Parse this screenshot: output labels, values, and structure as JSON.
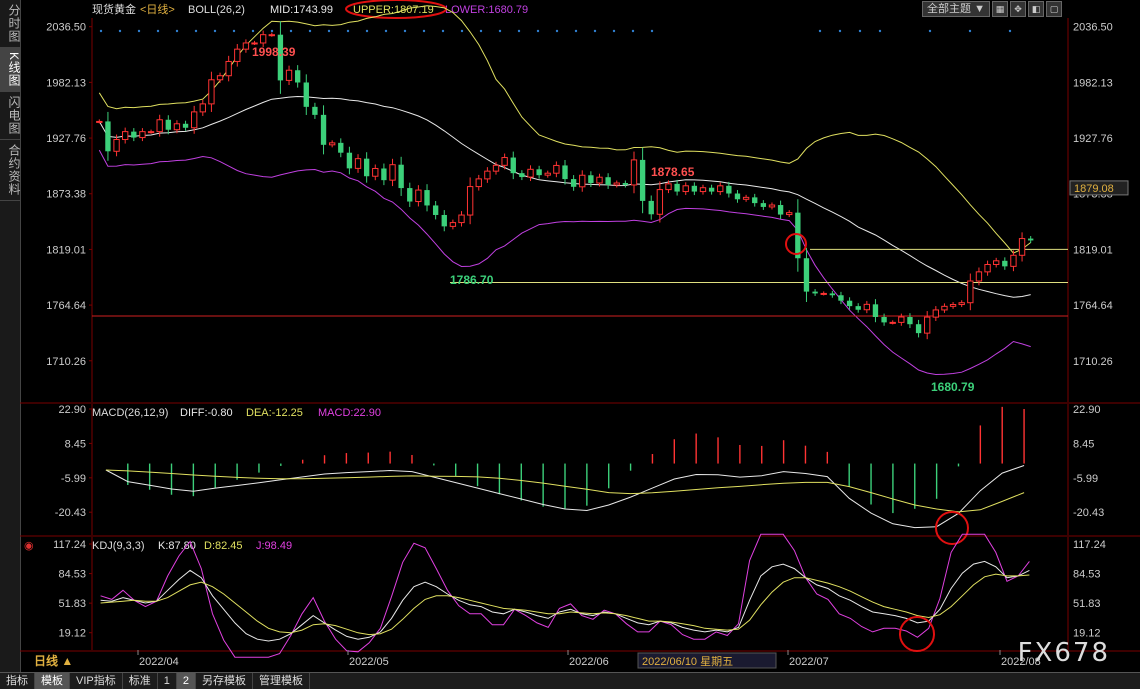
{
  "sidebar": {
    "tabs": [
      "分时图",
      "K线图",
      "闪电图",
      "合约资料"
    ],
    "active_index": 1
  },
  "header": {
    "symbol": "现货黄金",
    "period": "<日线>",
    "boll_label": "BOLL(26,2)",
    "mid": "MID:1743.99",
    "upper": "UPPER:1807.19",
    "lower": "LOWER:1680.79",
    "theme_button": "全部主题 ▼"
  },
  "macd_header": {
    "name": "MACD(26,12,9)",
    "diff": "DIFF:-0.80",
    "dea": "DEA:-12.25",
    "macd": "MACD:22.90"
  },
  "kdj_header": {
    "name": "KDJ(9,3,3)",
    "k": "K:87.80",
    "d": "D:82.45",
    "j": "J:98.49"
  },
  "xaxis": {
    "period_label": "日线 ▲",
    "dates": [
      "2022/04",
      "2022/05",
      "2022/06",
      "2022/07",
      "2022/08"
    ],
    "cursor_date": "2022/06/10 星期五"
  },
  "toolbar": [
    "指标",
    "模板",
    "VIP指标",
    "标准",
    "1",
    "2",
    "另存模板",
    "管理模板"
  ],
  "toolbar_active": [
    1,
    5
  ],
  "watermark": "FX678",
  "colors": {
    "up": "#ff3333",
    "down": "#3cd07a",
    "mid": "#e8e8e8",
    "upper": "#e0e060",
    "lower": "#c040e0",
    "axis": "#7a0000"
  },
  "chart_data": [
    {
      "type": "candlestick",
      "title": "现货黄金",
      "ylim": [
        1670,
        2045
      ],
      "yticks": [
        "2036.50",
        "1982.13",
        "1927.76",
        "1873.38",
        "1819.01",
        "1764.64",
        "1710.26"
      ],
      "current_price": "1879.08",
      "annotations": {
        "high1": "1998.39",
        "high2": "1878.65",
        "low1": "1786.70",
        "low2": "1680.79"
      },
      "hlines": [
        1819.01,
        1786.7,
        1754
      ],
      "start_price": 1944,
      "returns": [
        0.0,
        -0.015,
        0.006,
        0.004,
        -0.003,
        0.003,
        0.0,
        0.006,
        -0.005,
        0.003,
        -0.002,
        0.008,
        0.004,
        0.012,
        0.002,
        0.007,
        0.006,
        0.003,
        0.0,
        0.004,
        0.0,
        -0.022,
        0.005,
        -0.006,
        -0.012,
        -0.004,
        -0.015,
        0.001,
        -0.005,
        -0.008,
        0.005,
        -0.009,
        0.004,
        -0.006,
        0.008,
        -0.012,
        -0.007,
        0.006,
        -0.008,
        -0.005,
        -0.006,
        0.002,
        0.004,
        0.015,
        0.004,
        0.004,
        0.003,
        0.004,
        -0.008,
        -0.002,
        0.004,
        -0.003,
        0.001,
        0.004,
        -0.007,
        -0.004,
        0.006,
        -0.004,
        0.003,
        -0.004,
        0.001,
        -0.001,
        0.013,
        -0.021,
        -0.007,
        0.013,
        0.003,
        -0.004,
        0.003,
        -0.003,
        0.002,
        -0.002,
        0.003,
        -0.004,
        -0.003,
        0.001,
        -0.003,
        -0.002,
        0.001,
        -0.005,
        0.001,
        -0.024,
        -0.018,
        -0.001,
        0.0,
        -0.001,
        -0.003,
        -0.003,
        -0.002,
        0.003,
        -0.007,
        -0.003,
        0.0,
        0.003,
        -0.004,
        -0.005,
        0.009,
        0.004,
        0.002,
        0.001,
        0.001,
        0.012,
        0.005,
        0.004,
        0.002,
        -0.003,
        0.006,
        0.009,
        -0.001
      ]
    },
    {
      "type": "bar",
      "title": "MACD(26,12,9)",
      "ylim": [
        -30,
        25
      ],
      "yticks": [
        "22.90",
        "8.45",
        "-5.99",
        "-20.43"
      ],
      "diff": [
        -2.7,
        -7.6,
        -9.1,
        -10.7,
        -11.6,
        -10.3,
        -9.2,
        -8.1,
        -6.8,
        -5.6,
        -4.4,
        -3.8,
        -3.4,
        -2.9,
        -3.4,
        -5.7,
        -8.0,
        -10.3,
        -12.6,
        -14.9,
        -17.2,
        -19.1,
        -19.7,
        -17.4,
        -14.1,
        -10.3,
        -6.5,
        -4.6,
        -4.7,
        -5.7,
        -5.1,
        -3.4,
        -4.2,
        -5.5,
        -14.6,
        -20.8,
        -25.3,
        -26.9,
        -26.5,
        -20.9,
        -11.4,
        -4.0,
        -0.8
      ],
      "dea": [
        -2.7,
        -3.1,
        -3.6,
        -4.2,
        -4.8,
        -5.3,
        -5.8,
        -6.2,
        -6.4,
        -6.4,
        -6.2,
        -6.0,
        -5.7,
        -5.4,
        -5.2,
        -5.3,
        -5.4,
        -5.6,
        -6.2,
        -7.1,
        -8.2,
        -9.5,
        -10.8,
        -12.2,
        -12.6,
        -12.3,
        -11.6,
        -10.9,
        -10.2,
        -9.6,
        -8.9,
        -8.3,
        -7.9,
        -7.9,
        -9.7,
        -12.2,
        -14.9,
        -17.4,
        -19.1,
        -20.3,
        -19.4,
        -15.9,
        -12.2
      ],
      "macd": [
        0.0,
        -9.0,
        -11.0,
        -13.1,
        -13.7,
        -10.3,
        -6.8,
        -3.8,
        -1.0,
        1.6,
        3.5,
        4.4,
        4.6,
        5.0,
        3.6,
        -0.8,
        -5.2,
        -9.5,
        -12.9,
        -15.5,
        -18.1,
        -19.2,
        -17.7,
        -10.4,
        -3.0,
        4.0,
        10.2,
        12.6,
        11.0,
        7.8,
        7.4,
        9.8,
        7.5,
        4.9,
        -9.8,
        -17.2,
        -20.8,
        -19.0,
        -14.8,
        -1.2,
        16.0,
        23.8,
        22.9
      ]
    },
    {
      "type": "line",
      "title": "KDJ(9,3,3)",
      "ylim": [
        0,
        125
      ],
      "yticks": [
        "117.24",
        "84.53",
        "51.83",
        "19.12"
      ],
      "k": [
        55,
        54,
        58,
        55,
        52,
        54,
        66,
        78,
        88,
        80,
        60,
        45,
        30,
        18,
        12,
        10,
        12,
        18,
        28,
        38,
        30,
        22,
        15,
        12,
        14,
        20,
        35,
        55,
        70,
        75,
        70,
        62,
        55,
        50,
        48,
        42,
        40,
        45,
        42,
        38,
        35,
        42,
        45,
        40,
        38,
        42,
        40,
        35,
        30,
        28,
        32,
        30,
        25,
        22,
        20,
        22,
        20,
        25,
        55,
        82,
        92,
        95,
        90,
        80,
        72,
        68,
        60,
        55,
        48,
        42,
        40,
        38,
        35,
        30,
        32,
        45,
        68,
        85,
        95,
        98,
        92,
        80,
        82,
        88
      ],
      "d": [
        52,
        53,
        54,
        55,
        54,
        54,
        58,
        65,
        72,
        75,
        70,
        62,
        52,
        42,
        32,
        24,
        20,
        19,
        22,
        28,
        29,
        27,
        23,
        19,
        17,
        18,
        23,
        34,
        46,
        56,
        60,
        60,
        58,
        55,
        52,
        49,
        46,
        45,
        44,
        42,
        40,
        40,
        42,
        41,
        40,
        41,
        40,
        38,
        35,
        32,
        32,
        31,
        29,
        27,
        24,
        23,
        22,
        23,
        33,
        50,
        64,
        75,
        80,
        80,
        77,
        74,
        70,
        65,
        59,
        53,
        48,
        45,
        42,
        38,
        36,
        39,
        48,
        60,
        72,
        81,
        84,
        82,
        82,
        83
      ],
      "j": [
        60,
        56,
        66,
        55,
        48,
        54,
        82,
        104,
        120,
        90,
        40,
        11,
        -14,
        -30,
        -28,
        -18,
        -4,
        16,
        40,
        58,
        32,
        12,
        -1,
        -2,
        8,
        24,
        59,
        97,
        118,
        113,
        90,
        66,
        49,
        40,
        40,
        28,
        28,
        45,
        38,
        30,
        25,
        46,
        51,
        38,
        34,
        44,
        40,
        29,
        20,
        20,
        32,
        28,
        17,
        12,
        12,
        20,
        16,
        29,
        99,
        146,
        148,
        135,
        110,
        80,
        62,
        56,
        40,
        35,
        26,
        20,
        24,
        24,
        21,
        14,
        24,
        57,
        108,
        135,
        141,
        132,
        108,
        76,
        82,
        98
      ]
    }
  ]
}
